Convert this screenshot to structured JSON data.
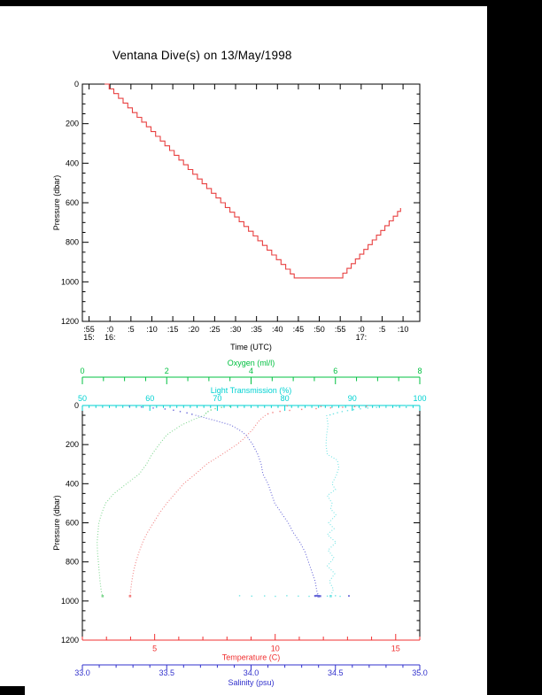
{
  "title": "Ventana Dive(s) on 13/May/1998",
  "colors": {
    "black": "#000000",
    "dive_line": "#e84040",
    "red": "#f03030",
    "red_curve": "#f28080",
    "green": "#00c040",
    "green_curve": "#82d892",
    "cyan": "#00d2d2",
    "cyan_curve": "#72e4e4",
    "blue": "#3030cc",
    "blue_curve": "#6868d8"
  },
  "chart_data": [
    {
      "id": "dive-time-series",
      "type": "line",
      "title": "",
      "xlabel": "Time (UTC)",
      "ylabel": "Pressure (dbar)",
      "x_domain_min_from_1600": [
        -6.6,
        74
      ],
      "x_ticks": [
        {
          "m": -5,
          "label": ":55",
          "hour": "15:"
        },
        {
          "m": 0,
          "label": ":0",
          "hour": "16:"
        },
        {
          "m": 5,
          "label": ":5"
        },
        {
          "m": 10,
          "label": ":10"
        },
        {
          "m": 15,
          "label": ":15"
        },
        {
          "m": 20,
          "label": ":20"
        },
        {
          "m": 25,
          "label": ":25"
        },
        {
          "m": 30,
          "label": ":30"
        },
        {
          "m": 35,
          "label": ":35"
        },
        {
          "m": 40,
          "label": ":40"
        },
        {
          "m": 45,
          "label": ":45"
        },
        {
          "m": 50,
          "label": ":50"
        },
        {
          "m": 55,
          "label": ":55"
        },
        {
          "m": 60,
          "label": ":0",
          "hour": "17:"
        },
        {
          "m": 65,
          "label": ":5"
        },
        {
          "m": 70,
          "label": ":10"
        }
      ],
      "ylim": [
        0,
        1200
      ],
      "y_ticks": [
        0,
        200,
        400,
        600,
        800,
        1000,
        1200
      ],
      "y_minor_step": 50,
      "series": [
        {
          "name": "ROV depth vs time (stepped)",
          "color_key": "dive_line",
          "step_dbar": 24,
          "descent": {
            "start_time_min": -1.3,
            "start_dbar": 0,
            "end_time_min": 44.0,
            "end_dbar": 980
          },
          "bottom": {
            "until_time_min": 54.6,
            "dbar": 980
          },
          "ascent": {
            "end_time_min": 69.4,
            "end_dbar": 627
          },
          "summary": "Descent ~15:59-16:44 to ~980 dbar; on bottom until ~16:55; ascent to ~630 dbar by ~17:09"
        }
      ]
    },
    {
      "id": "ctd-profiles",
      "type": "scatter",
      "ylabel": "Pressure (dbar)",
      "ylim": [
        0,
        1200
      ],
      "y_ticks": [
        0,
        200,
        400,
        600,
        800,
        1000,
        1200
      ],
      "y_minor_step": 50,
      "axes": {
        "oxygen": {
          "label": "Oxygen (ml/l)",
          "lim": [
            0,
            8
          ],
          "ticks": [
            "0",
            "2",
            "4",
            "6",
            "8"
          ],
          "minor_step": 0.5,
          "color_key": "green"
        },
        "light": {
          "label": "Light Transmission (%)",
          "lim": [
            50,
            100
          ],
          "ticks": [
            "50",
            "60",
            "70",
            "80",
            "90",
            "100"
          ],
          "minor_step": 1,
          "color_key": "cyan"
        },
        "temperature": {
          "label": "Temperature (C)",
          "lim": [
            2,
            16
          ],
          "ticks": [
            "5",
            "10",
            "15"
          ],
          "minor_step": 1,
          "color_key": "red"
        },
        "salinity": {
          "label": "Salinity (psu)",
          "lim": [
            33,
            35
          ],
          "ticks": [
            "33.0",
            "33.5",
            "34.0",
            "34.5",
            "35.0"
          ],
          "minor_step": 0.1,
          "color_key": "blue"
        }
      },
      "profiles": {
        "temperature": [
          [
            50,
            9.6
          ],
          [
            75,
            9.35
          ],
          [
            100,
            9.2
          ],
          [
            125,
            9.05
          ],
          [
            150,
            8.85
          ],
          [
            175,
            8.65
          ],
          [
            200,
            8.4
          ],
          [
            250,
            7.8
          ],
          [
            300,
            7.15
          ],
          [
            350,
            6.7
          ],
          [
            400,
            6.2
          ],
          [
            450,
            5.85
          ],
          [
            500,
            5.5
          ],
          [
            550,
            5.2
          ],
          [
            600,
            4.95
          ],
          [
            650,
            4.7
          ],
          [
            700,
            4.5
          ],
          [
            750,
            4.35
          ],
          [
            800,
            4.22
          ],
          [
            850,
            4.12
          ],
          [
            900,
            4.05
          ],
          [
            950,
            4.0
          ],
          [
            975,
            3.98
          ]
        ],
        "salinity": [
          [
            50,
            33.67
          ],
          [
            75,
            33.78
          ],
          [
            100,
            33.88
          ],
          [
            125,
            33.93
          ],
          [
            150,
            33.97
          ],
          [
            200,
            34.01
          ],
          [
            250,
            34.04
          ],
          [
            300,
            34.06
          ],
          [
            350,
            34.07
          ],
          [
            400,
            34.1
          ],
          [
            450,
            34.12
          ],
          [
            500,
            34.14
          ],
          [
            550,
            34.18
          ],
          [
            600,
            34.22
          ],
          [
            650,
            34.25
          ],
          [
            700,
            34.29
          ],
          [
            750,
            34.32
          ],
          [
            800,
            34.34
          ],
          [
            850,
            34.36
          ],
          [
            900,
            34.38
          ],
          [
            950,
            34.39
          ],
          [
            975,
            34.4
          ]
        ],
        "oxygen": [
          [
            50,
            2.9
          ],
          [
            75,
            2.6
          ],
          [
            100,
            2.35
          ],
          [
            150,
            2.0
          ],
          [
            200,
            1.82
          ],
          [
            250,
            1.65
          ],
          [
            300,
            1.52
          ],
          [
            350,
            1.35
          ],
          [
            400,
            1.05
          ],
          [
            450,
            0.75
          ],
          [
            500,
            0.55
          ],
          [
            550,
            0.46
          ],
          [
            600,
            0.39
          ],
          [
            650,
            0.37
          ],
          [
            700,
            0.35
          ],
          [
            750,
            0.36
          ],
          [
            800,
            0.38
          ],
          [
            850,
            0.4
          ],
          [
            900,
            0.42
          ],
          [
            950,
            0.45
          ],
          [
            975,
            0.48
          ]
        ],
        "light": [
          [
            50,
            86.2
          ],
          [
            100,
            86.4
          ],
          [
            150,
            86.2
          ],
          [
            200,
            86.1
          ],
          [
            250,
            86.3
          ],
          [
            280,
            87.8
          ],
          [
            320,
            88.0
          ],
          [
            360,
            87.6
          ],
          [
            400,
            87.0
          ],
          [
            430,
            87.5
          ],
          [
            460,
            86.3
          ],
          [
            500,
            87.0
          ],
          [
            530,
            86.8
          ],
          [
            560,
            87.6
          ],
          [
            600,
            86.5
          ],
          [
            630,
            87.3
          ],
          [
            660,
            86.3
          ],
          [
            700,
            87.6
          ],
          [
            740,
            86.4
          ],
          [
            780,
            87.3
          ],
          [
            820,
            86.3
          ],
          [
            860,
            87.4
          ],
          [
            900,
            86.6
          ],
          [
            940,
            87.2
          ],
          [
            975,
            86.8
          ]
        ]
      },
      "scatter": {
        "temperature_surface": [
          [
            3,
            13.8
          ],
          [
            6,
            13.3
          ],
          [
            9,
            12.8
          ],
          [
            12,
            12.3
          ],
          [
            16,
            11.7
          ],
          [
            20,
            11.1
          ],
          [
            25,
            10.6
          ],
          [
            30,
            10.2
          ],
          [
            36,
            9.9
          ],
          [
            43,
            9.7
          ],
          [
            2,
            10.5
          ],
          [
            5,
            11.9
          ]
        ],
        "salinity_surface": [
          [
            4,
            33.28
          ],
          [
            8,
            33.35
          ],
          [
            13,
            33.42
          ],
          [
            18,
            33.49
          ],
          [
            24,
            33.54
          ],
          [
            31,
            33.58
          ],
          [
            38,
            33.62
          ],
          [
            45,
            33.65
          ]
        ],
        "oxygen_surface": [
          [
            5,
            3.5
          ],
          [
            10,
            3.3
          ],
          [
            16,
            3.15
          ],
          [
            23,
            3.05
          ],
          [
            31,
            2.98
          ],
          [
            40,
            2.93
          ]
        ],
        "light_surface": [
          [
            2,
            98
          ],
          [
            4,
            96.5
          ],
          [
            7,
            95
          ],
          [
            10,
            93.6
          ],
          [
            13,
            92.3
          ],
          [
            17,
            91.2
          ],
          [
            21,
            90.2
          ],
          [
            26,
            89.3
          ],
          [
            31,
            88.5
          ],
          [
            37,
            87.8
          ],
          [
            43,
            87.2
          ],
          [
            48,
            86.7
          ]
        ],
        "light_bottom": [
          [
            973,
            73.3
          ],
          [
            975,
            75.1
          ],
          [
            974,
            77.0
          ],
          [
            976,
            78.6
          ],
          [
            973,
            80.3
          ],
          [
            975,
            82.0
          ],
          [
            976,
            83.6
          ],
          [
            974,
            85.1
          ],
          [
            975,
            86.3
          ],
          [
            973,
            87.5
          ],
          [
            976,
            88.2
          ]
        ],
        "salinity_bottom_cluster": [
          [
            974,
            34.38
          ],
          [
            976,
            34.4
          ],
          [
            975,
            34.41
          ],
          [
            973,
            34.39
          ]
        ],
        "salinity_bottom_outlier": [
          [
            974,
            34.58
          ]
        ]
      }
    }
  ]
}
